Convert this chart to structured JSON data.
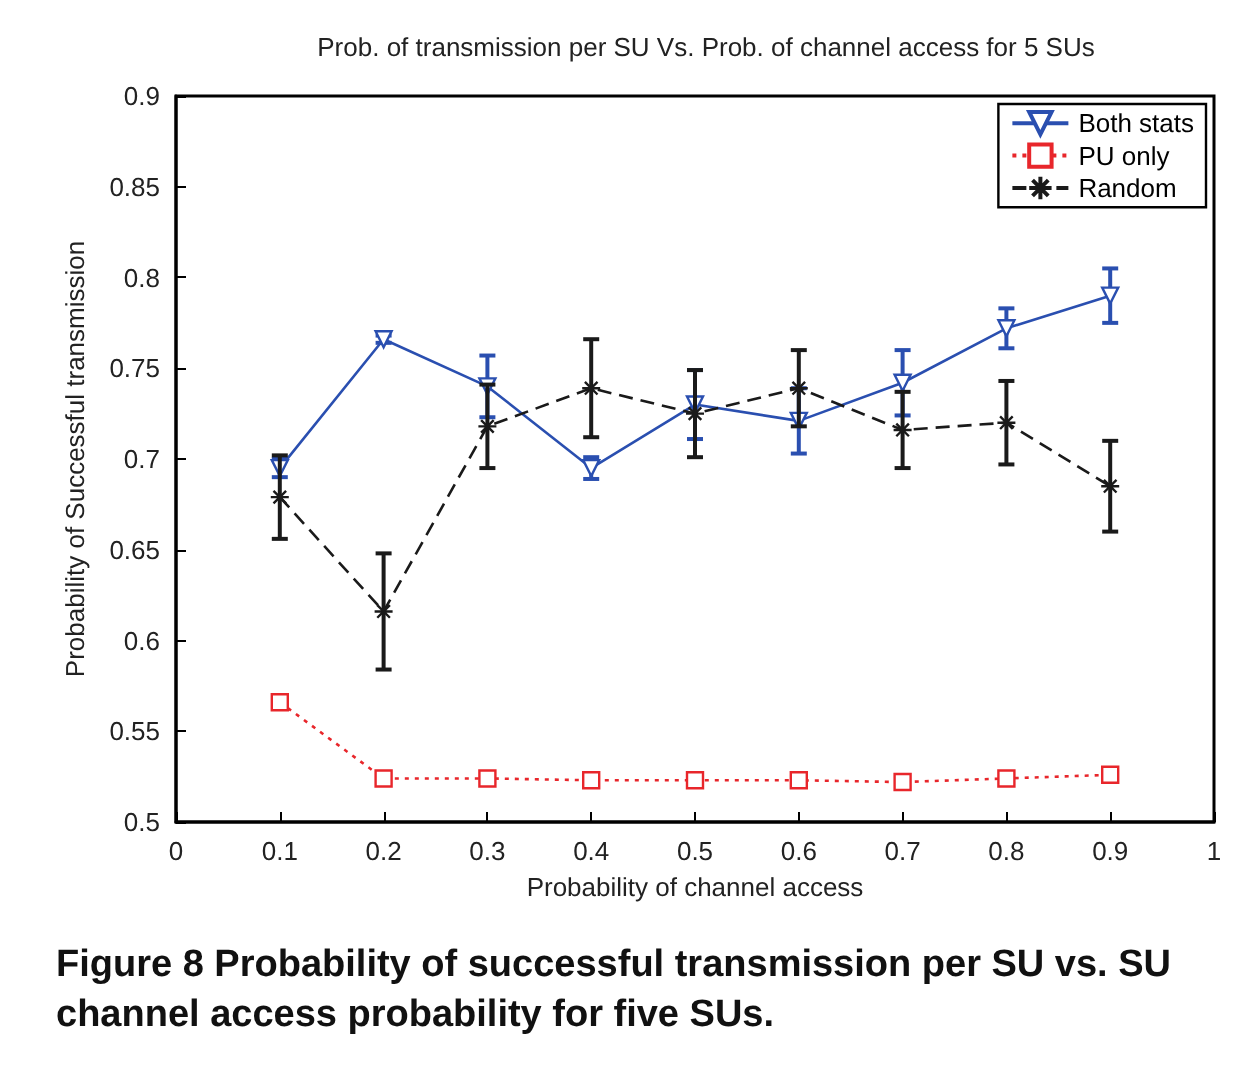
{
  "chart_data": {
    "type": "line",
    "title": "Prob. of transmission per SU Vs. Prob. of channel access for 5 SUs",
    "xlabel": "Probability of channel access",
    "ylabel": "Probability of Successful transmission",
    "x": [
      0.1,
      0.2,
      0.3,
      0.4,
      0.5,
      0.6,
      0.7,
      0.8,
      0.9
    ],
    "series": [
      {
        "name": "Both stats",
        "color": "#2a4fb0",
        "marker": "triangle",
        "line_style": "solid",
        "values": [
          0.695,
          0.766,
          0.74,
          0.695,
          0.73,
          0.721,
          0.742,
          0.772,
          0.79
        ],
        "errors": [
          0.005,
          0.002,
          0.017,
          0.006,
          0.019,
          0.018,
          0.018,
          0.011,
          0.015
        ]
      },
      {
        "name": "PU only",
        "color": "#e8262b",
        "marker": "square",
        "line_style": "dotted",
        "values": [
          0.566,
          0.524,
          0.524,
          0.523,
          0.523,
          0.523,
          0.522,
          0.524,
          0.526
        ]
      },
      {
        "name": "Random",
        "color": "#1a1a1a",
        "marker": "cross",
        "line_style": "dashed",
        "values": [
          0.679,
          0.616,
          0.718,
          0.739,
          0.725,
          0.739,
          0.716,
          0.72,
          0.685
        ],
        "errors": [
          0.023,
          0.032,
          0.023,
          0.027,
          0.024,
          0.021,
          0.021,
          0.023,
          0.025
        ]
      }
    ],
    "xlim": [
      0,
      1
    ],
    "xticks": [
      0,
      0.1,
      0.2,
      0.3,
      0.4,
      0.5,
      0.6,
      0.7,
      0.8,
      0.9,
      1
    ],
    "ylim": [
      0.5,
      0.9
    ],
    "yticks": [
      0.5,
      0.55,
      0.6,
      0.65,
      0.7,
      0.75,
      0.8,
      0.85,
      0.9
    ],
    "legend": "top right",
    "grid": false,
    "annotations": [
      "Figure 8 Probability of successful transmission per SU vs. SU channel access probability for five SUs."
    ]
  }
}
